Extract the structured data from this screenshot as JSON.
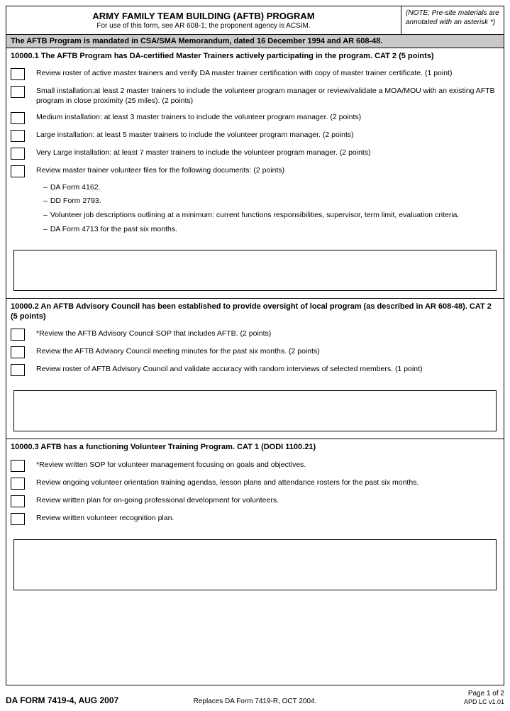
{
  "header": {
    "title": "ARMY FAMILY TEAM BUILDING (AFTB) PROGRAM",
    "subtitle": "For use of this form, see AR 608-1; the proponent agency is ACSIM.",
    "note": "(NOTE: Pre-site materials are annotated with an asterisk *)"
  },
  "banner": "The AFTB Program is mandated in CSA/SMA Memorandum, dated 16 December 1994 and AR 608-48.",
  "sections": [
    {
      "heading": "10000.1 The AFTB Program has DA-certified Master Trainers actively participating in the program.  CAT 2 (5 points)",
      "items": [
        "Review roster of active master trainers and verify DA master trainer certification with copy of master trainer certificate.  (1 point)",
        "Small installation:at least 2 master trainers to include the volunteer program manager or review/validate a MOA/MOU with an existing AFTB program in close proximity (25 miles).  (2 points)",
        "Medium installation:  at least 3 master trainers to include the volunteer program manager. (2 points)",
        "Large installation:  at least 5 master trainers to include the volunteer program manager. (2 points)",
        "Very Large installation:  at least 7 master trainers to include the volunteer program manager. (2 points)",
        "Review master trainer volunteer files for the following documents:  (2 points)"
      ],
      "subitems": [
        "DA Form 4162.",
        "DD Form 2793.",
        "Volunteer job descriptions outlining at a minimum: current functions responsibilities, supervisor, term limit, evaluation criteria.",
        "DA Form 4713 for the past six months."
      ]
    },
    {
      "heading": "10000.2 An AFTB Advisory Council has been established to provide oversight of local program (as described in AR 608-48).  CAT 2 (5 points)",
      "items": [
        "*Review the AFTB Advisory Council SOP that includes AFTB. (2 points)",
        "Review the AFTB Advisory Council meeting minutes for the past six months.  (2 points)",
        "Review roster of AFTB Advisory Council and validate accuracy with random interviews of selected members.  (1 point)"
      ]
    },
    {
      "heading": "10000.3 AFTB has a functioning Volunteer Training Program.  CAT 1 (DODI 1100.21)",
      "items": [
        "*Review written SOP for volunteer management focusing on goals and objectives.",
        "Review ongoing volunteer orientation training agendas, lesson plans and attendance rosters for the past six months.",
        "Review written plan for on-going professional development for volunteers.",
        "Review written volunteer recognition plan."
      ]
    }
  ],
  "footer": {
    "form_id": "DA FORM 7419-4, AUG 2007",
    "replaces": "Replaces DA Form 7419-R, OCT 2004.",
    "page": "Page 1 of 2",
    "version": "APD LC v1.01"
  }
}
